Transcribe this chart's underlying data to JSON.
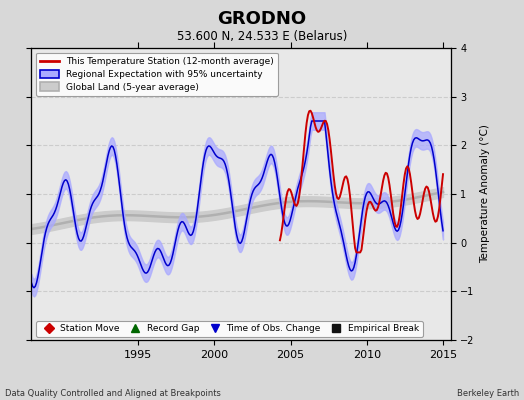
{
  "title": "GRODNO",
  "subtitle": "53.600 N, 24.533 E (Belarus)",
  "ylabel": "Temperature Anomaly (°C)",
  "xlim": [
    1988.0,
    2015.5
  ],
  "ylim": [
    -2,
    4
  ],
  "yticks": [
    -2,
    -1,
    0,
    1,
    2,
    3,
    4
  ],
  "xticks": [
    1995,
    2000,
    2005,
    2010,
    2015
  ],
  "background_color": "#d8d8d8",
  "plot_bg_color": "#e8e8e8",
  "footer_left": "Data Quality Controlled and Aligned at Breakpoints",
  "footer_right": "Berkeley Earth",
  "legend_items": [
    "This Temperature Station (12-month average)",
    "Regional Expectation with 95% uncertainty",
    "Global Land (5-year average)"
  ],
  "bottom_legend": [
    {
      "marker": "D",
      "color": "#cc0000",
      "label": "Station Move"
    },
    {
      "marker": "^",
      "color": "#006600",
      "label": "Record Gap"
    },
    {
      "marker": "v",
      "color": "#0000cc",
      "label": "Time of Obs. Change"
    },
    {
      "marker": "s",
      "color": "#111111",
      "label": "Empirical Break"
    }
  ],
  "line_red_color": "#cc0000",
  "line_blue_color": "#0000cc",
  "line_blue_fill": "#aaaaff",
  "line_gray_color": "#b0b0b0",
  "line_gray_fill": "#cccccc"
}
